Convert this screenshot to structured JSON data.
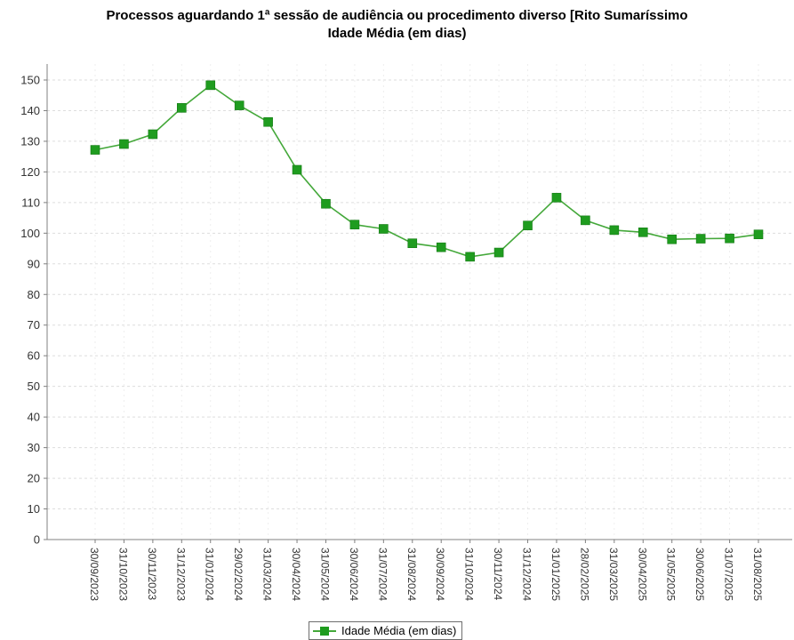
{
  "chart_data": {
    "type": "line",
    "title": "Processos aguardando 1ª sessão de audiência ou procedimento diverso [Rito Sumaríssimo",
    "subtitle": "Idade Média (em dias)",
    "xlabel": "",
    "ylabel": "",
    "ylim": [
      0,
      150
    ],
    "yticks": [
      0,
      10,
      20,
      30,
      40,
      50,
      60,
      70,
      80,
      90,
      100,
      110,
      120,
      130,
      140,
      150
    ],
    "grid": true,
    "legend_position": "bottom",
    "categories": [
      "30/09/2023",
      "31/10/2023",
      "30/11/2023",
      "31/12/2023",
      "31/01/2024",
      "29/02/2024",
      "31/03/2024",
      "30/04/2024",
      "31/05/2024",
      "30/06/2024",
      "31/07/2024",
      "31/08/2024",
      "30/09/2024",
      "31/10/2024",
      "30/11/2024",
      "31/12/2024",
      "31/01/2025",
      "28/02/2025",
      "31/03/2025",
      "30/04/2025",
      "31/05/2025",
      "30/06/2025",
      "31/07/2025",
      "31/08/2025"
    ],
    "series": [
      {
        "name": "Idade Média (em dias)",
        "color": "#44a83a",
        "marker_color": "#1f9c1f",
        "values": [
          127.2,
          129.1,
          132.3,
          140.9,
          148.3,
          141.7,
          136.3,
          120.7,
          109.6,
          102.8,
          101.4,
          96.7,
          95.4,
          92.3,
          93.7,
          102.5,
          111.6,
          104.2,
          101.0,
          100.3,
          98.0,
          98.2,
          98.3,
          99.6
        ]
      }
    ]
  }
}
